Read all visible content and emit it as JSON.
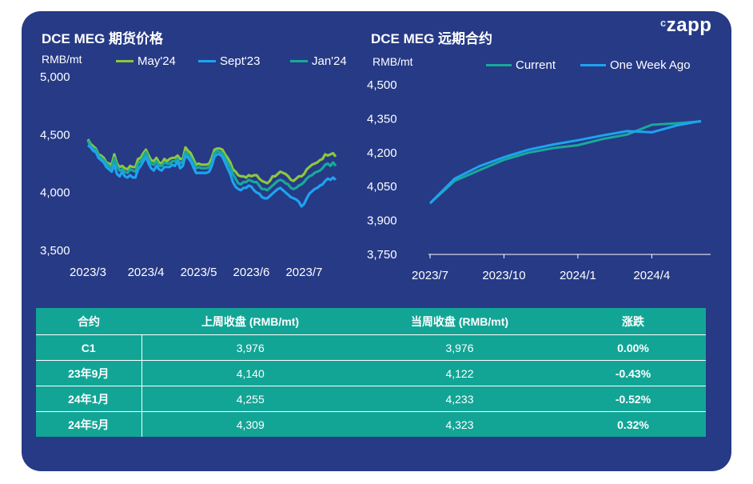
{
  "logo": "zapp",
  "logo_mark": "c",
  "left_chart": {
    "title": "DCE MEG 期货价格",
    "unit": "RMB/mt",
    "legend": [
      {
        "name": "May'24",
        "color": "#8dc63f"
      },
      {
        "name": "Sept'23",
        "color": "#1ea3f0"
      },
      {
        "name": "Jan'24",
        "color": "#19a99a"
      }
    ]
  },
  "right_chart": {
    "title": "DCE MEG 远期合约",
    "unit": "RMB/mt",
    "legend": [
      {
        "name": "Current",
        "color": "#19a99a"
      },
      {
        "name": "One Week Ago",
        "color": "#1ea3f0"
      }
    ]
  },
  "chart_data": [
    {
      "type": "line",
      "title": "DCE MEG 期货价格",
      "ylabel": "RMB/mt",
      "ylim": [
        3500,
        5000
      ],
      "yticks": [
        "5,000",
        "4,500",
        "4,000",
        "3,500"
      ],
      "ytick_values": [
        5000,
        4500,
        4000,
        3500
      ],
      "xticks": [
        "2023/3",
        "2023/4",
        "2023/5",
        "2023/6",
        "2023/7"
      ],
      "xtick_index": [
        0,
        22,
        42,
        62,
        82
      ],
      "series": [
        {
          "name": "May'24",
          "color": "#8dc63f",
          "values": [
            4460,
            4420,
            4400,
            4380,
            4330,
            4320,
            4300,
            4260,
            4250,
            4240,
            4330,
            4250,
            4220,
            4230,
            4210,
            4200,
            4230,
            4220,
            4220,
            4290,
            4300,
            4340,
            4370,
            4320,
            4280,
            4270,
            4300,
            4260,
            4250,
            4290,
            4270,
            4290,
            4300,
            4300,
            4320,
            4290,
            4290,
            4390,
            4360,
            4340,
            4290,
            4240,
            4250,
            4240,
            4240,
            4240,
            4250,
            4300,
            4370,
            4380,
            4380,
            4370,
            4330,
            4300,
            4260,
            4200,
            4180,
            4150,
            4140,
            4140,
            4130,
            4150,
            4140,
            4150,
            4150,
            4120,
            4100,
            4090,
            4080,
            4100,
            4140,
            4140,
            4160,
            4180,
            4170,
            4160,
            4140,
            4110,
            4100,
            4120,
            4140,
            4140,
            4160,
            4200,
            4220,
            4240,
            4250,
            4260,
            4280,
            4290,
            4330,
            4320,
            4330,
            4340,
            4310
          ]
        },
        {
          "name": "Jan'24",
          "color": "#19a99a",
          "values": [
            4450,
            4400,
            4380,
            4370,
            4320,
            4300,
            4280,
            4250,
            4230,
            4210,
            4300,
            4230,
            4190,
            4200,
            4180,
            4170,
            4200,
            4190,
            4180,
            4250,
            4270,
            4310,
            4350,
            4290,
            4250,
            4240,
            4270,
            4230,
            4230,
            4260,
            4250,
            4250,
            4270,
            4270,
            4290,
            4250,
            4270,
            4350,
            4330,
            4300,
            4260,
            4210,
            4220,
            4210,
            4210,
            4210,
            4220,
            4260,
            4340,
            4360,
            4350,
            4340,
            4300,
            4260,
            4220,
            4160,
            4120,
            4080,
            4070,
            4090,
            4090,
            4110,
            4100,
            4090,
            4090,
            4060,
            4030,
            4030,
            4020,
            4040,
            4060,
            4080,
            4100,
            4110,
            4100,
            4080,
            4070,
            4040,
            4030,
            4040,
            4060,
            4070,
            4090,
            4120,
            4140,
            4150,
            4170,
            4180,
            4190,
            4210,
            4240,
            4250,
            4230,
            4260,
            4230
          ]
        },
        {
          "name": "Sept'23",
          "color": "#1ea3f0",
          "values": [
            4410,
            4390,
            4360,
            4350,
            4300,
            4280,
            4260,
            4220,
            4200,
            4180,
            4240,
            4160,
            4140,
            4180,
            4140,
            4130,
            4150,
            4130,
            4130,
            4200,
            4230,
            4270,
            4310,
            4250,
            4210,
            4190,
            4230,
            4200,
            4190,
            4220,
            4220,
            4220,
            4240,
            4230,
            4270,
            4210,
            4230,
            4320,
            4300,
            4270,
            4220,
            4170,
            4170,
            4170,
            4170,
            4170,
            4180,
            4230,
            4310,
            4330,
            4330,
            4310,
            4260,
            4210,
            4160,
            4090,
            4050,
            4030,
            4020,
            4040,
            4040,
            4060,
            4050,
            4020,
            4000,
            3990,
            3960,
            3950,
            3950,
            3970,
            3990,
            4010,
            4030,
            4040,
            4020,
            4000,
            3980,
            3960,
            3950,
            3940,
            3920,
            3880,
            3900,
            3950,
            3990,
            4010,
            4030,
            4040,
            4060,
            4070,
            4100,
            4120,
            4110,
            4130,
            4110
          ]
        }
      ]
    },
    {
      "type": "line",
      "title": "DCE MEG 远期合约",
      "ylabel": "RMB/mt",
      "ylim": [
        3750,
        4500
      ],
      "yticks": [
        "4,500",
        "4,350",
        "4,200",
        "4,050",
        "3,900",
        "3,750"
      ],
      "ytick_values": [
        4500,
        4350,
        4200,
        4050,
        3900,
        3750
      ],
      "xticks": [
        "2023/7",
        "2023/10",
        "2024/1",
        "2024/4"
      ],
      "xtick_index": [
        0,
        3,
        6,
        9
      ],
      "series": [
        {
          "name": "Current",
          "color": "#19a99a",
          "values": [
            3976,
            4075,
            4122,
            4168,
            4200,
            4220,
            4233,
            4260,
            4280,
            4323,
            4330,
            4338
          ]
        },
        {
          "name": "One Week Ago",
          "color": "#1ea3f0",
          "values": [
            3976,
            4085,
            4140,
            4180,
            4213,
            4236,
            4255,
            4276,
            4295,
            4290,
            4320,
            4340
          ]
        }
      ]
    }
  ],
  "table": {
    "headers": [
      "合约",
      "上周收盘 (RMB/mt)",
      "当周收盘 (RMB/mt)",
      "涨跌"
    ],
    "rows": [
      [
        "C1",
        "3,976",
        "3,976",
        "0.00%"
      ],
      [
        "23年9月",
        "4,140",
        "4,122",
        "-0.43%"
      ],
      [
        "24年1月",
        "4,255",
        "4,233",
        "-0.52%"
      ],
      [
        "24年5月",
        "4,309",
        "4,323",
        "0.32%"
      ]
    ]
  }
}
